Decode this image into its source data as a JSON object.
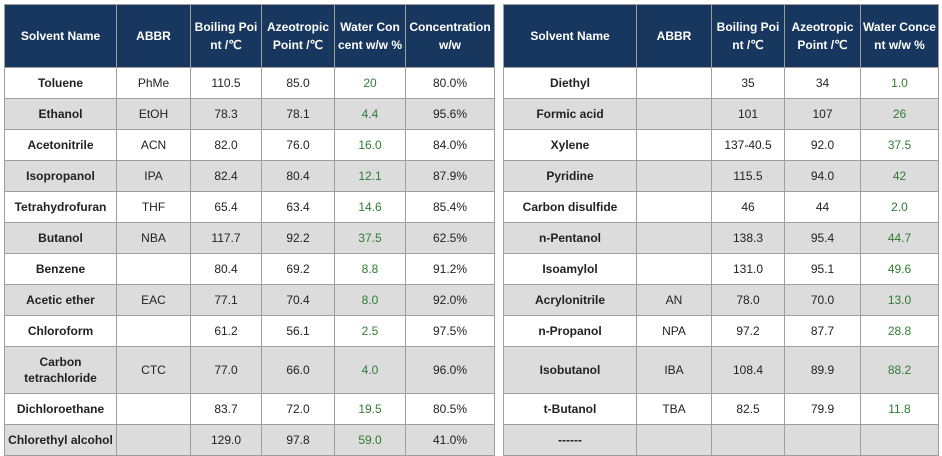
{
  "left_table": {
    "headers": [
      "Solvent Name",
      "ABBR",
      "Boiling Point /℃",
      "Azeotropic Point /℃",
      "Water Concent w/w %",
      "Concentration w/w"
    ],
    "rows": [
      [
        "Toluene",
        "PhMe",
        "110.5",
        "85.0",
        "20",
        "80.0%"
      ],
      [
        "Ethanol",
        "EtOH",
        "78.3",
        "78.1",
        "4.4",
        "95.6%"
      ],
      [
        "Acetonitrile",
        "ACN",
        "82.0",
        "76.0",
        "16.0",
        "84.0%"
      ],
      [
        "Isopropanol",
        "IPA",
        "82.4",
        "80.4",
        "12.1",
        "87.9%"
      ],
      [
        "Tetrahydrofuran",
        "THF",
        "65.4",
        "63.4",
        "14.6",
        "85.4%"
      ],
      [
        "Butanol",
        "NBA",
        "117.7",
        "92.2",
        "37.5",
        "62.5%"
      ],
      [
        "Benzene",
        "",
        "80.4",
        "69.2",
        "8.8",
        "91.2%"
      ],
      [
        "Acetic ether",
        "EAC",
        "77.1",
        "70.4",
        "8.0",
        "92.0%"
      ],
      [
        "Chloroform",
        "",
        "61.2",
        "56.1",
        "2.5",
        "97.5%"
      ],
      [
        "Carbon tetrachloride",
        "CTC",
        "77.0",
        "66.0",
        "4.0",
        "96.0%"
      ],
      [
        "Dichloroethane",
        "",
        "83.7",
        "72.0",
        "19.5",
        "80.5%"
      ],
      [
        "Chlorethyl alcohol",
        "",
        "129.0",
        "97.8",
        "59.0",
        "41.0%"
      ]
    ]
  },
  "right_table": {
    "headers": [
      "Solvent Name",
      "ABBR",
      "Boiling Point /℃",
      "Azeotropic Point /℃",
      "Water Concent w/w %"
    ],
    "rows": [
      [
        "Diethyl",
        "",
        "35",
        "34",
        "1.0"
      ],
      [
        "Formic acid",
        "",
        "101",
        "107",
        "26"
      ],
      [
        "Xylene",
        "",
        "137-40.5",
        "92.0",
        "37.5"
      ],
      [
        "Pyridine",
        "",
        "115.5",
        "94.0",
        "42"
      ],
      [
        "Carbon disulfide",
        "",
        "46",
        "44",
        "2.0"
      ],
      [
        "n-Pentanol",
        "",
        "138.3",
        "95.4",
        "44.7"
      ],
      [
        "Isoamylol",
        "",
        "131.0",
        "95.1",
        "49.6"
      ],
      [
        "Acrylonitrile",
        "AN",
        "78.0",
        "70.0",
        "13.0"
      ],
      [
        "n-Propanol",
        "NPA",
        "97.2",
        "87.7",
        "28.8"
      ],
      [
        "Isobutanol",
        "IBA",
        "108.4",
        "89.9",
        "88.2"
      ],
      [
        "t-Butanol",
        "TBA",
        "82.5",
        "79.9",
        "11.8"
      ],
      [
        "------",
        "",
        "",
        "",
        ""
      ]
    ]
  },
  "colors": {
    "header_bg": "#17375e",
    "header_text": "#ffffff",
    "stripe_bg": "#dcdcdc",
    "water_text": "#2e7d32"
  }
}
